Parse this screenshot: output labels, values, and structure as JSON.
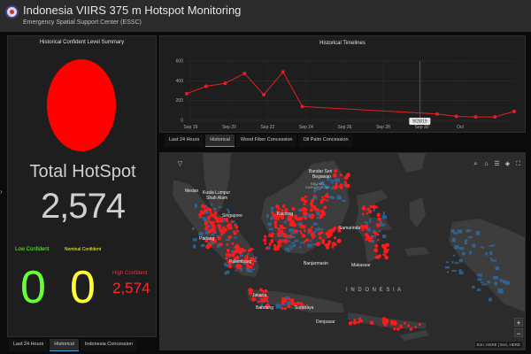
{
  "header": {
    "title": "Indonesia VIIRS 375 m Hotspot Monitoring",
    "subtitle": "Emergency Spatial Support Center (ESSC)"
  },
  "summary": {
    "title": "Historical Confident Level Summary",
    "total_label": "Total HotSpot",
    "total_value": "2,574",
    "low_label": "Low Confident",
    "low_value": "0",
    "nominal_label": "Nominal Confident",
    "nominal_value": "0",
    "high_label": "High Confident",
    "high_value": "2,574",
    "tabs": [
      "Last 24 Hours",
      "Historical",
      "Indonesia Concession"
    ],
    "active_tab": 1
  },
  "colors": {
    "accent_red": "#ff0000",
    "low_green": "#66ff33",
    "nominal_yellow": "#ffff33",
    "high_red": "#ff2a2a",
    "tab_active": "#4aa3df"
  },
  "chart_data": {
    "type": "line",
    "title": "Historical Timelines",
    "y_ticks": [
      "600",
      "400",
      "200",
      "0"
    ],
    "ylim": [
      0,
      600
    ],
    "x_ticks": [
      "Sep 19",
      "Sep 20",
      "Sep 22",
      "Sep 24",
      "Sep 26",
      "Sep 28",
      "Sep 30",
      "Oct"
    ],
    "points": [
      {
        "x": 0,
        "y": 270
      },
      {
        "x": 1,
        "y": 345
      },
      {
        "x": 2,
        "y": 375
      },
      {
        "x": 3,
        "y": 475
      },
      {
        "x": 4,
        "y": 260
      },
      {
        "x": 5,
        "y": 490
      },
      {
        "x": 6,
        "y": 140
      },
      {
        "x": 13,
        "y": 65
      },
      {
        "x": 14,
        "y": 40
      },
      {
        "x": 15,
        "y": 35
      },
      {
        "x": 16,
        "y": 35
      },
      {
        "x": 17,
        "y": 90
      }
    ],
    "x_count": 18,
    "tooltip": "9/28/19",
    "grid": true,
    "line_color": "#e02020"
  },
  "timeline_tabs": [
    "Last 24 Hours",
    "Historical",
    "Wood Fiber Concession",
    "Oil Palm Concession"
  ],
  "timeline_active_tab": 1,
  "map": {
    "labels": {
      "bandar": "Bandar Seri",
      "begawan": "Begawan",
      "brunei": "BRUNEI",
      "darussalam": "DARUSSALAM",
      "kuala": "Kuala Lumpur",
      "medan": "Medan",
      "shah_alam": "Shah Alam",
      "singapore": "Singapore",
      "padang": "Padang",
      "kuching": "Kuching",
      "samarinda": "Samarinda",
      "banjarmasin": "Banjarmasin",
      "palembang": "Palembang",
      "jakarta": "Jakarta",
      "bandung": "Bandung",
      "surabaya": "Surabaya",
      "makassar": "Makassar",
      "denpasar": "Denpasar",
      "indonesia": "I N D O N E S I A"
    },
    "tools": [
      "search-icon",
      "home-icon",
      "list-icon",
      "layers-icon",
      "basemap-icon",
      "fullscreen-icon"
    ],
    "zoom_in": "+",
    "zoom_out": "−",
    "attribution": "Esri, HERE | Esri, HERE",
    "filter_icon": "▽"
  }
}
